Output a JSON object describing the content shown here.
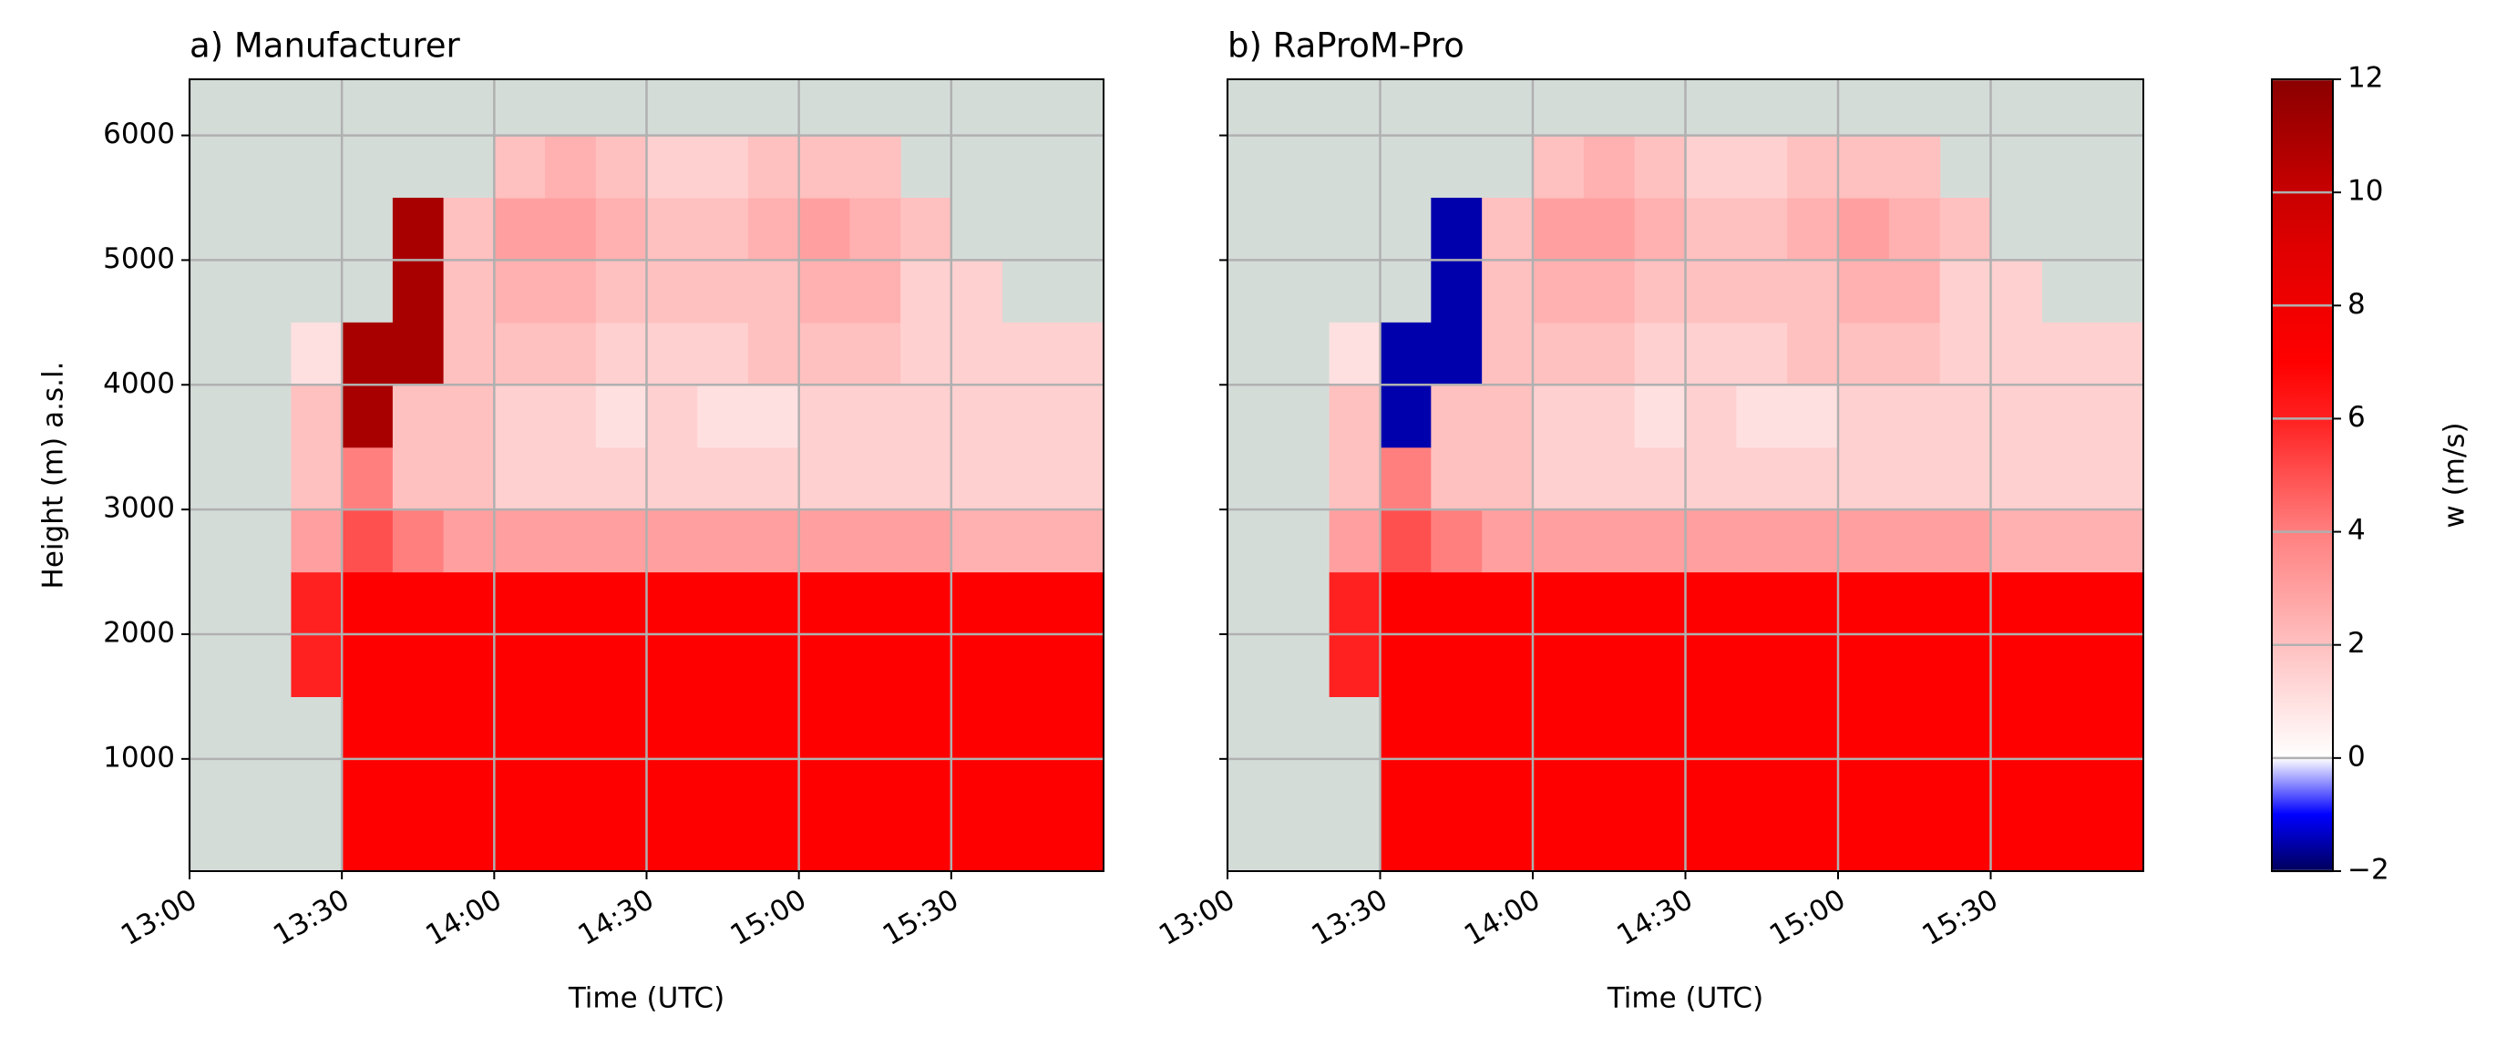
{
  "chart_data": [
    {
      "type": "heatmap",
      "title": "a) Manufacturer",
      "xlabel": "Time (UTC)",
      "ylabel": "Height (m) a.s.l.",
      "x": [
        "13:00",
        "13:10",
        "13:20",
        "13:30",
        "13:40",
        "13:50",
        "14:00",
        "14:10",
        "14:20",
        "14:30",
        "14:40",
        "14:50",
        "15:00",
        "15:10",
        "15:20",
        "15:30",
        "15:40",
        "15:50",
        "16:00"
      ],
      "y": [
        100,
        500,
        1000,
        1500,
        2000,
        2500,
        3000,
        3500,
        4000,
        4500,
        5000,
        5500,
        6000,
        6450
      ],
      "values": [
        [
          null,
          null,
          null,
          7,
          7,
          7,
          7,
          7,
          7,
          7,
          7,
          7,
          7,
          7,
          7,
          7,
          7,
          7
        ],
        [
          null,
          null,
          null,
          7,
          7,
          7,
          7,
          7,
          7,
          7,
          7,
          7,
          7,
          7,
          7,
          7,
          7,
          7
        ],
        [
          null,
          null,
          null,
          7,
          7,
          7,
          7,
          7,
          7,
          7,
          7,
          7,
          7,
          7,
          7,
          7,
          7,
          7
        ],
        [
          null,
          null,
          6,
          7,
          7,
          7,
          7,
          7,
          7,
          7,
          7,
          7,
          7,
          7,
          7,
          7,
          7,
          7
        ],
        [
          null,
          null,
          6,
          7,
          7,
          7,
          7,
          7,
          7,
          7,
          7,
          7,
          7,
          7,
          7,
          7,
          7,
          7
        ],
        [
          null,
          null,
          3,
          5,
          4,
          3,
          3,
          3,
          3,
          3,
          3,
          3,
          3,
          3,
          3,
          2.5,
          2.5,
          2.5
        ],
        [
          null,
          null,
          2,
          4,
          2,
          2,
          1.5,
          1.5,
          1.5,
          1.5,
          1.5,
          1.5,
          1.5,
          1.5,
          1.5,
          1.5,
          1.5,
          1.5
        ],
        [
          null,
          null,
          2,
          11,
          2,
          2,
          1.5,
          1.5,
          1,
          1.5,
          1,
          1,
          1.5,
          1.5,
          1.5,
          1.5,
          1.5,
          1.5
        ],
        [
          null,
          null,
          1,
          11,
          11,
          2,
          2,
          2,
          1.5,
          1.5,
          1.5,
          2,
          2,
          2,
          1.5,
          1.5,
          1.5,
          1.5
        ],
        [
          null,
          null,
          null,
          null,
          11,
          2,
          2.5,
          2.5,
          2,
          2,
          2,
          2,
          2.5,
          2.5,
          1.5,
          1.5,
          null,
          null
        ],
        [
          null,
          null,
          null,
          null,
          11,
          2,
          3,
          3,
          2.5,
          2,
          2,
          2.5,
          3,
          2.5,
          2,
          null,
          null,
          null
        ],
        [
          null,
          null,
          null,
          null,
          null,
          null,
          2,
          2.5,
          2,
          1.5,
          1.5,
          2,
          2,
          2,
          null,
          null,
          null,
          null
        ],
        [
          null,
          null,
          null,
          null,
          null,
          null,
          null,
          null,
          null,
          null,
          null,
          null,
          null,
          null,
          null,
          null,
          null,
          null
        ]
      ],
      "xlim": [
        "13:00",
        "16:00"
      ],
      "ylim": [
        100,
        6450
      ],
      "xticks": [
        "13:00",
        "13:30",
        "14:00",
        "14:30",
        "15:00",
        "15:30"
      ],
      "yticks": [
        1000,
        2000,
        3000,
        4000,
        5000,
        6000
      ],
      "grid": true
    },
    {
      "type": "heatmap",
      "title": "b) RaProM-Pro",
      "xlabel": "Time (UTC)",
      "x": [
        "13:00",
        "13:10",
        "13:20",
        "13:30",
        "13:40",
        "13:50",
        "14:00",
        "14:10",
        "14:20",
        "14:30",
        "14:40",
        "14:50",
        "15:00",
        "15:10",
        "15:20",
        "15:30",
        "15:40",
        "15:50",
        "16:00"
      ],
      "y": [
        100,
        500,
        1000,
        1500,
        2000,
        2500,
        3000,
        3500,
        4000,
        4500,
        5000,
        5500,
        6000,
        6450
      ],
      "values": [
        [
          null,
          null,
          null,
          7,
          7,
          7,
          7,
          7,
          7,
          7,
          7,
          7,
          7,
          7,
          7,
          7,
          7,
          7
        ],
        [
          null,
          null,
          null,
          7,
          7,
          7,
          7,
          7,
          7,
          7,
          7,
          7,
          7,
          7,
          7,
          7,
          7,
          7
        ],
        [
          null,
          null,
          null,
          7,
          7,
          7,
          7,
          7,
          7,
          7,
          7,
          7,
          7,
          7,
          7,
          7,
          7,
          7
        ],
        [
          null,
          null,
          6,
          7,
          7,
          7,
          7,
          7,
          7,
          7,
          7,
          7,
          7,
          7,
          7,
          7,
          7,
          7
        ],
        [
          null,
          null,
          6,
          7,
          7,
          7,
          7,
          7,
          7,
          7,
          7,
          7,
          7,
          7,
          7,
          7,
          7,
          7
        ],
        [
          null,
          null,
          3,
          5,
          4,
          3,
          3,
          3,
          3,
          3,
          3,
          3,
          3,
          3,
          3,
          2.5,
          2.5,
          2.5
        ],
        [
          null,
          null,
          2,
          4,
          2,
          2,
          1.5,
          1.5,
          1.5,
          1.5,
          1.5,
          1.5,
          1.5,
          1.5,
          1.5,
          1.5,
          1.5,
          1.5
        ],
        [
          null,
          null,
          2,
          -1.5,
          2,
          2,
          1.5,
          1.5,
          1,
          1.5,
          1,
          1,
          1.5,
          1.5,
          1.5,
          1.5,
          1.5,
          1.5
        ],
        [
          null,
          null,
          1,
          -1.5,
          -1.5,
          2,
          2,
          2,
          1.5,
          1.5,
          1.5,
          2,
          2,
          2,
          1.5,
          1.5,
          1.5,
          1.5
        ],
        [
          null,
          null,
          null,
          null,
          -1.5,
          2,
          2.5,
          2.5,
          2,
          2,
          2,
          2,
          2.5,
          2.5,
          1.5,
          1.5,
          null,
          null
        ],
        [
          null,
          null,
          null,
          null,
          -1.5,
          2,
          3,
          3,
          2.5,
          2,
          2,
          2.5,
          3,
          2.5,
          2,
          null,
          null,
          null
        ],
        [
          null,
          null,
          null,
          null,
          null,
          null,
          2,
          2.5,
          2,
          1.5,
          1.5,
          2,
          2,
          2,
          null,
          null,
          null,
          null
        ],
        [
          null,
          null,
          null,
          null,
          null,
          null,
          null,
          null,
          null,
          null,
          null,
          null,
          null,
          null,
          null,
          null,
          null,
          null
        ]
      ],
      "xlim": [
        "13:00",
        "16:00"
      ],
      "ylim": [
        100,
        6450
      ],
      "xticks": [
        "13:00",
        "13:30",
        "14:00",
        "14:30",
        "15:00",
        "15:30"
      ],
      "yticks": [
        1000,
        2000,
        3000,
        4000,
        5000,
        6000
      ],
      "grid": true
    }
  ],
  "colorbar": {
    "label": "w (m/s)",
    "lim": [
      -2,
      12
    ],
    "ticks": [
      {
        "value": -2,
        "label": "−2"
      },
      0,
      2,
      4,
      6,
      8,
      10,
      12
    ],
    "colors": [
      "#00005a",
      "#0000ff",
      "#ffffff",
      "#ffe0e0",
      "#ffc0c0",
      "#ff9f9f",
      "#ff7f7f",
      "#ff5050",
      "#ff2020",
      "#ff0000",
      "#f00000",
      "#e00000",
      "#c80000",
      "#a80000",
      "#8b0000"
    ],
    "nan_color": "#d4dcd8"
  }
}
